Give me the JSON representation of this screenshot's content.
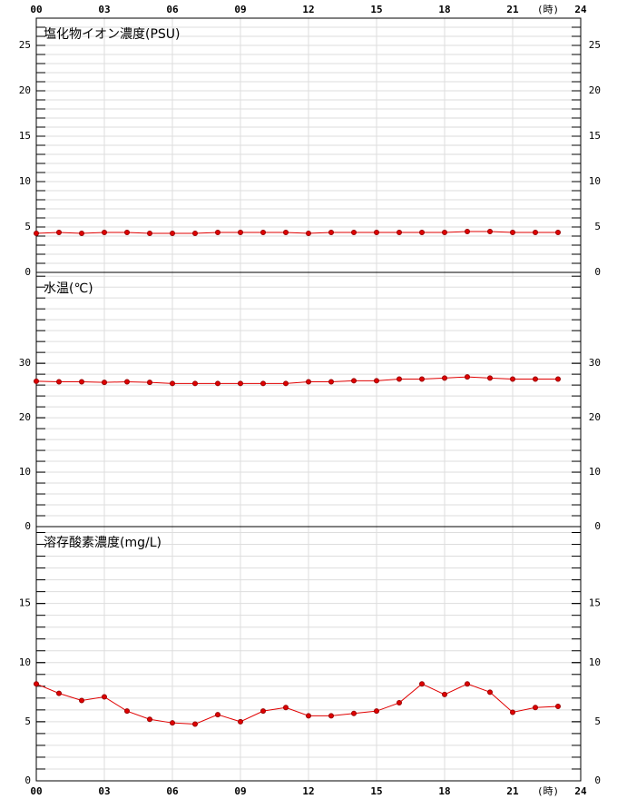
{
  "chart_data": [
    {
      "type": "line",
      "title": "塩化物イオン濃度(PSU)",
      "x_unit": "(時)",
      "x": [
        0,
        1,
        2,
        3,
        4,
        5,
        6,
        7,
        8,
        9,
        10,
        11,
        12,
        13,
        14,
        15,
        16,
        17,
        18,
        19,
        20,
        21,
        22,
        23
      ],
      "values": [
        4.3,
        4.4,
        4.3,
        4.4,
        4.4,
        4.3,
        4.3,
        4.3,
        4.4,
        4.4,
        4.4,
        4.4,
        4.3,
        4.4,
        4.4,
        4.4,
        4.4,
        4.4,
        4.4,
        4.5,
        4.5,
        4.4,
        4.4,
        4.4
      ],
      "color": "#e00000",
      "xlim": [
        0,
        24
      ],
      "xticks": [
        {
          "value": 0,
          "label": "00"
        },
        {
          "value": 3,
          "label": "03"
        },
        {
          "value": 6,
          "label": "06"
        },
        {
          "value": 9,
          "label": "09"
        },
        {
          "value": 12,
          "label": "12"
        },
        {
          "value": 15,
          "label": "15"
        },
        {
          "value": 18,
          "label": "18"
        },
        {
          "value": 21,
          "label": "21"
        },
        {
          "value": 24,
          "label": "24"
        }
      ],
      "ylim": [
        0,
        28
      ],
      "yticks": [
        0,
        5,
        10,
        15,
        20,
        25
      ],
      "minor_tick_step": 1,
      "grid": true
    },
    {
      "type": "line",
      "title": "水温(℃)",
      "x": [
        0,
        1,
        2,
        3,
        4,
        5,
        6,
        7,
        8,
        9,
        10,
        11,
        12,
        13,
        14,
        15,
        16,
        17,
        18,
        19,
        20,
        21,
        22,
        23
      ],
      "values": [
        26.7,
        26.6,
        26.6,
        26.5,
        26.6,
        26.5,
        26.3,
        26.3,
        26.3,
        26.3,
        26.3,
        26.3,
        26.6,
        26.6,
        26.8,
        26.8,
        27.1,
        27.1,
        27.3,
        27.5,
        27.3,
        27.1,
        27.1,
        27.1
      ],
      "color": "#e00000",
      "xlim": [
        0,
        24
      ],
      "xticks": [
        0,
        3,
        6,
        9,
        12,
        15,
        18,
        21,
        24
      ],
      "ylim": [
        0,
        46.7
      ],
      "yticks": [
        0,
        10,
        20,
        30
      ],
      "minor_tick_step": 2,
      "grid": true
    },
    {
      "type": "line",
      "title": "溶存酸素濃度(mg/L)",
      "x_unit": "(時)",
      "x": [
        0,
        1,
        2,
        3,
        4,
        5,
        6,
        7,
        8,
        9,
        10,
        11,
        12,
        13,
        14,
        15,
        16,
        17,
        18,
        19,
        20,
        21,
        22,
        23
      ],
      "values": [
        8.2,
        7.4,
        6.8,
        7.1,
        5.9,
        5.2,
        4.9,
        4.8,
        5.6,
        5.0,
        5.9,
        6.2,
        5.5,
        5.5,
        5.7,
        5.9,
        6.6,
        8.2,
        7.3,
        8.2,
        7.5,
        5.8,
        6.2,
        6.3
      ],
      "color": "#e00000",
      "xlim": [
        0,
        24
      ],
      "xticks": [
        {
          "value": 0,
          "label": "00"
        },
        {
          "value": 3,
          "label": "03"
        },
        {
          "value": 6,
          "label": "06"
        },
        {
          "value": 9,
          "label": "09"
        },
        {
          "value": 12,
          "label": "12"
        },
        {
          "value": 15,
          "label": "15"
        },
        {
          "value": 18,
          "label": "18"
        },
        {
          "value": 21,
          "label": "21"
        },
        {
          "value": 24,
          "label": "24"
        }
      ],
      "ylim": [
        0,
        21.5
      ],
      "yticks": [
        0,
        5,
        10,
        15
      ],
      "minor_tick_step": 1,
      "grid": true
    }
  ]
}
